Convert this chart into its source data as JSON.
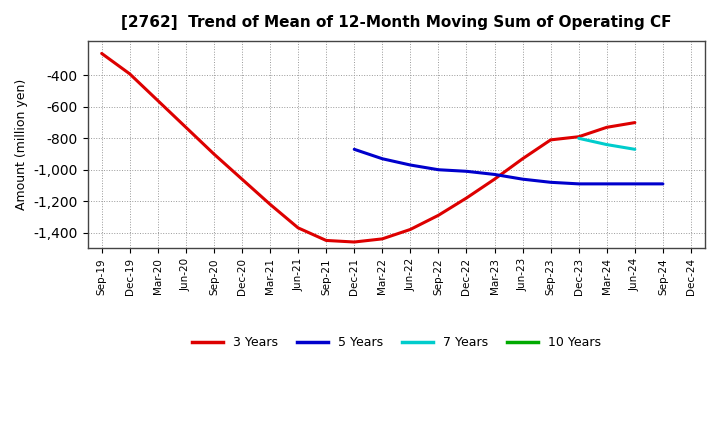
{
  "title": "[2762]  Trend of Mean of 12-Month Moving Sum of Operating CF",
  "ylabel": "Amount (million yen)",
  "background_color": "#ffffff",
  "grid_color": "#999999",
  "ylim": [
    -1500,
    -180
  ],
  "yticks": [
    -1400,
    -1200,
    -1000,
    -800,
    -600,
    -400
  ],
  "series": {
    "3yr": {
      "color": "#dd0000",
      "label": "3 Years",
      "points": [
        [
          "Sep-19",
          -260
        ],
        [
          "Dec-19",
          -390
        ],
        [
          "Mar-20",
          -560
        ],
        [
          "Jun-20",
          -730
        ],
        [
          "Sep-20",
          -900
        ],
        [
          "Dec-20",
          -1060
        ],
        [
          "Mar-21",
          -1220
        ],
        [
          "Jun-21",
          -1370
        ],
        [
          "Sep-21",
          -1450
        ],
        [
          "Dec-21",
          -1460
        ],
        [
          "Mar-22",
          -1440
        ],
        [
          "Jun-22",
          -1380
        ],
        [
          "Sep-22",
          -1290
        ],
        [
          "Dec-22",
          -1180
        ],
        [
          "Mar-23",
          -1060
        ],
        [
          "Jun-23",
          -930
        ],
        [
          "Sep-23",
          -810
        ],
        [
          "Dec-23",
          -790
        ],
        [
          "Mar-24",
          -730
        ],
        [
          "Jun-24",
          -700
        ]
      ]
    },
    "5yr": {
      "color": "#0000cc",
      "label": "5 Years",
      "points": [
        [
          "Dec-21",
          -870
        ],
        [
          "Mar-22",
          -930
        ],
        [
          "Jun-22",
          -970
        ],
        [
          "Sep-22",
          -1000
        ],
        [
          "Dec-22",
          -1010
        ],
        [
          "Mar-23",
          -1030
        ],
        [
          "Jun-23",
          -1060
        ],
        [
          "Sep-23",
          -1080
        ],
        [
          "Dec-23",
          -1090
        ],
        [
          "Mar-24",
          -1090
        ],
        [
          "Jun-24",
          -1090
        ],
        [
          "Sep-24",
          -1090
        ]
      ]
    },
    "7yr": {
      "color": "#00cccc",
      "label": "7 Years",
      "points": [
        [
          "Dec-23",
          -800
        ],
        [
          "Mar-24",
          -840
        ],
        [
          "Jun-24",
          -870
        ]
      ]
    },
    "10yr": {
      "color": "#00aa00",
      "label": "10 Years",
      "points": []
    }
  },
  "xtick_labels": [
    "Sep-19",
    "Dec-19",
    "Mar-20",
    "Jun-20",
    "Sep-20",
    "Dec-20",
    "Mar-21",
    "Jun-21",
    "Sep-21",
    "Dec-21",
    "Mar-22",
    "Jun-22",
    "Sep-22",
    "Dec-22",
    "Mar-23",
    "Jun-23",
    "Sep-23",
    "Dec-23",
    "Mar-24",
    "Jun-24",
    "Sep-24",
    "Dec-24"
  ]
}
